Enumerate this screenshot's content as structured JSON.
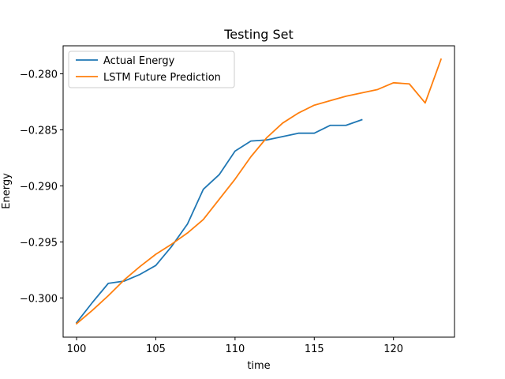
{
  "chart_data": {
    "type": "line",
    "title": "Testing Set",
    "xlabel": "time",
    "ylabel": "Energy",
    "xlim": [
      99.15,
      123.85
    ],
    "ylim": [
      -0.3035,
      -0.2775
    ],
    "xticks": [
      100,
      105,
      110,
      115,
      120
    ],
    "yticks": [
      -0.3,
      -0.295,
      -0.29,
      -0.285,
      -0.28
    ],
    "xtick_labels": [
      "100",
      "105",
      "110",
      "115",
      "120"
    ],
    "ytick_labels": [
      "−0.300",
      "−0.295",
      "−0.290",
      "−0.285",
      "−0.280"
    ],
    "grid": false,
    "legend_position": "top-left",
    "series": [
      {
        "name": "Actual Energy",
        "color": "#1f77b4",
        "x": [
          100,
          101,
          102,
          103,
          104,
          105,
          106,
          107,
          108,
          109,
          110,
          111,
          112,
          113,
          114,
          115,
          116,
          117,
          118
        ],
        "y": [
          -0.3022,
          -0.3004,
          -0.2987,
          -0.2985,
          -0.2979,
          -0.2971,
          -0.2954,
          -0.2934,
          -0.2903,
          -0.289,
          -0.2869,
          -0.286,
          -0.2859,
          -0.2856,
          -0.2853,
          -0.2853,
          -0.2846,
          -0.2846,
          -0.2841
        ]
      },
      {
        "name": "LSTM Future Prediction",
        "color": "#ff7f0e",
        "x": [
          100,
          101,
          102,
          103,
          104,
          105,
          106,
          107,
          108,
          109,
          110,
          111,
          112,
          113,
          114,
          115,
          116,
          117,
          118,
          119,
          120,
          121,
          122,
          123
        ],
        "y": [
          -0.3023,
          -0.3011,
          -0.2998,
          -0.2984,
          -0.2972,
          -0.2961,
          -0.2952,
          -0.2942,
          -0.293,
          -0.2912,
          -0.2894,
          -0.2874,
          -0.2857,
          -0.2844,
          -0.2835,
          -0.2828,
          -0.2824,
          -0.282,
          -0.2817,
          -0.2814,
          -0.2808,
          -0.2809,
          -0.2826,
          -0.2787
        ]
      }
    ]
  }
}
